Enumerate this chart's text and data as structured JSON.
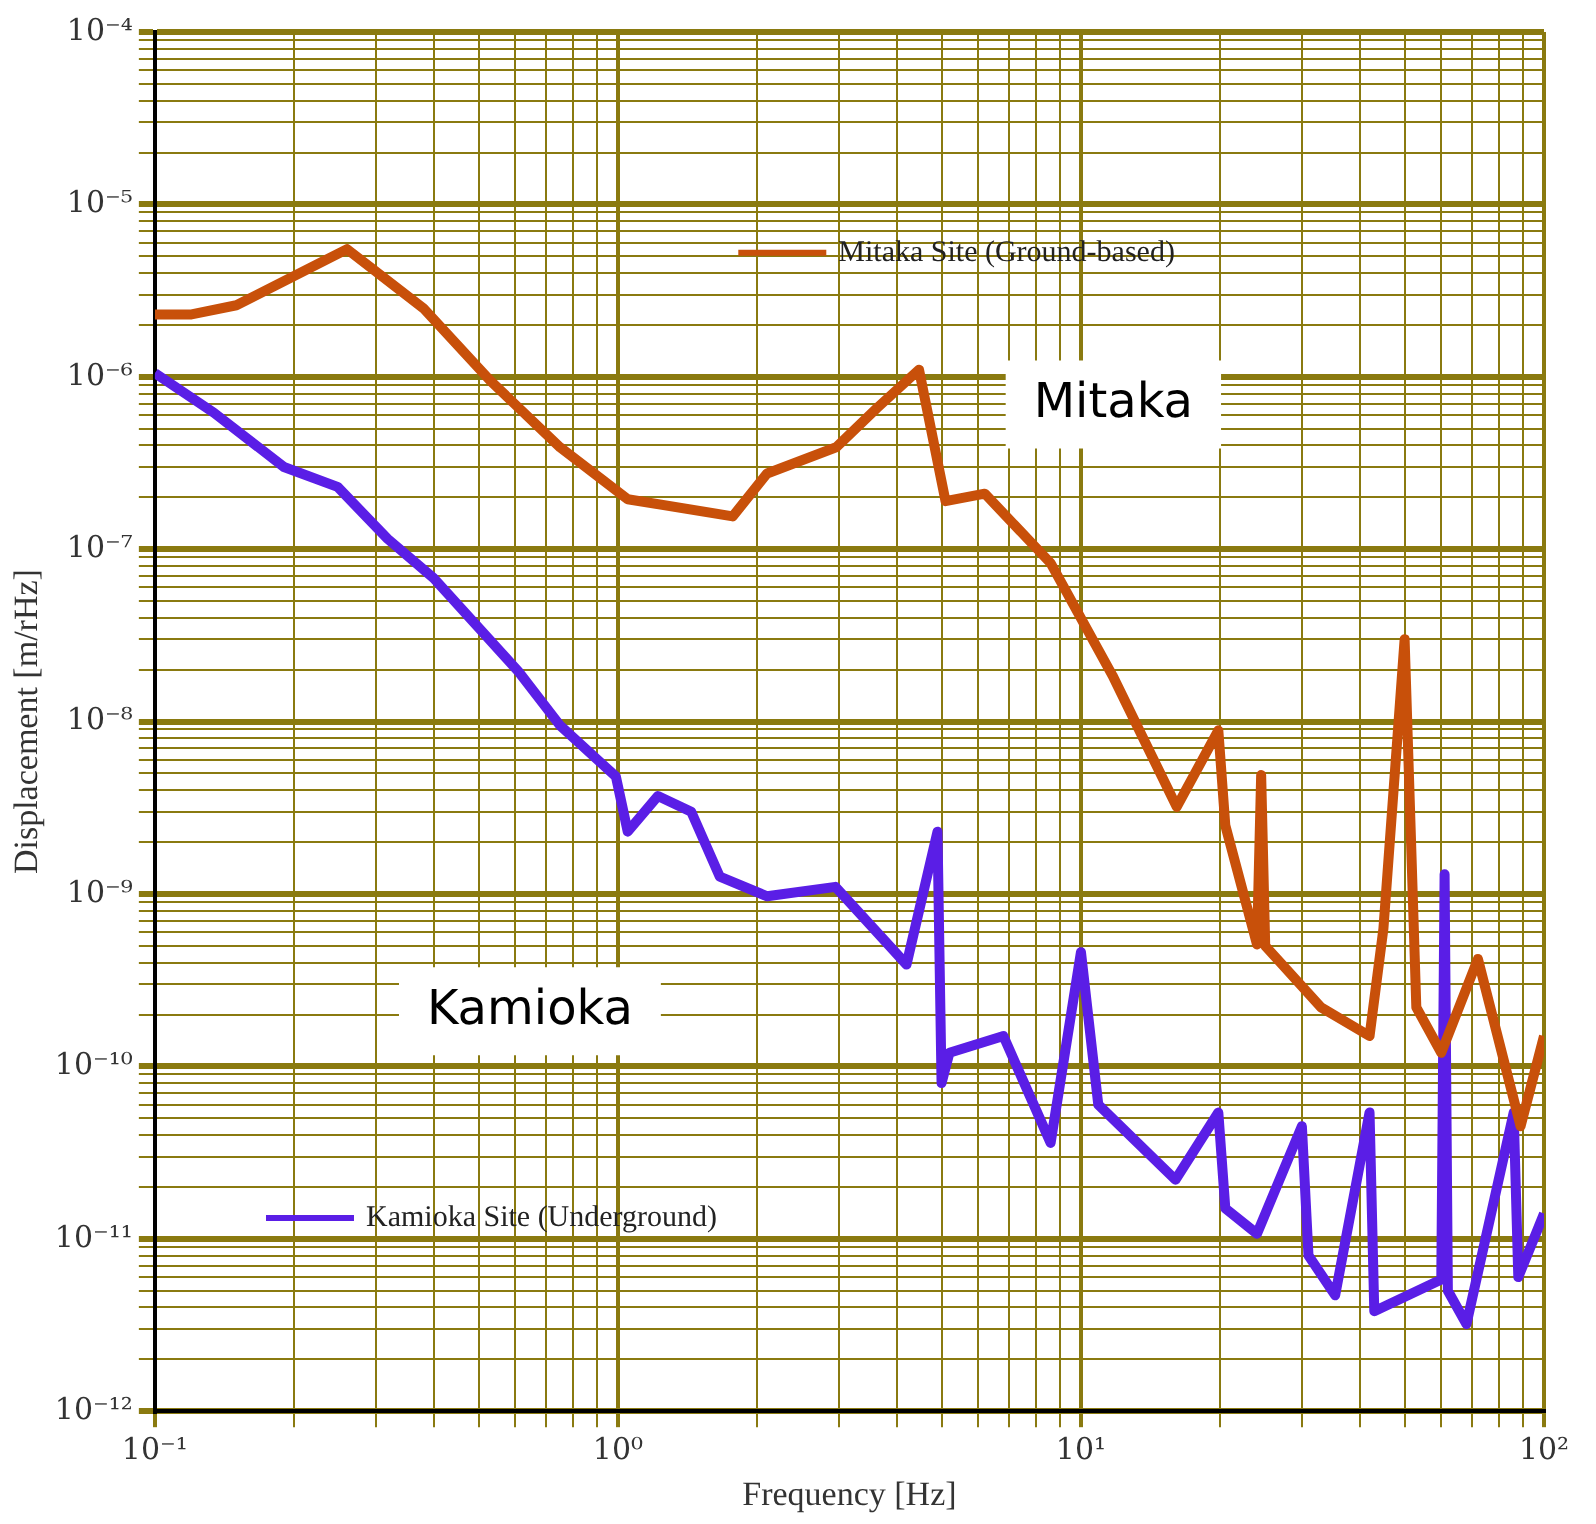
{
  "chart_data": {
    "type": "line",
    "xlabel": "Frequency [Hz]",
    "ylabel": "Displacement [m/rHz]",
    "log": "xy",
    "grid": true,
    "legend": "center",
    "xlim": [
      0.1,
      100
    ],
    "xticks": [
      {
        "value": 0.1,
        "label": "10⁻¹"
      },
      {
        "value": 0.2,
        "label": null
      },
      {
        "value": 0.3,
        "label": null
      },
      {
        "value": 0.4,
        "label": null
      },
      {
        "value": 0.5,
        "label": null
      },
      {
        "value": 0.6,
        "label": null
      },
      {
        "value": 0.7,
        "label": null
      },
      {
        "value": 0.8,
        "label": null
      },
      {
        "value": 0.9,
        "label": null
      },
      {
        "value": 1,
        "label": "10⁰"
      },
      {
        "value": 2,
        "label": null
      },
      {
        "value": 3,
        "label": null
      },
      {
        "value": 4,
        "label": null
      },
      {
        "value": 5,
        "label": null
      },
      {
        "value": 6,
        "label": null
      },
      {
        "value": 7,
        "label": null
      },
      {
        "value": 8,
        "label": null
      },
      {
        "value": 9,
        "label": null
      },
      {
        "value": 10,
        "label": "10¹"
      },
      {
        "value": 20,
        "label": null
      },
      {
        "value": 30,
        "label": null
      },
      {
        "value": 40,
        "label": null
      },
      {
        "value": 50,
        "label": null
      },
      {
        "value": 60,
        "label": null
      },
      {
        "value": 70,
        "label": null
      },
      {
        "value": 80,
        "label": null
      },
      {
        "value": 90,
        "label": null
      },
      {
        "value": 100,
        "label": "10²"
      }
    ],
    "ylim": [
      1e-12,
      0.0001
    ],
    "yticks": [
      {
        "value": 1e-12,
        "label": "10⁻¹²"
      },
      {
        "value": 2e-12,
        "label": null
      },
      {
        "value": 3e-12,
        "label": null
      },
      {
        "value": 4e-12,
        "label": null
      },
      {
        "value": 5e-12,
        "label": null
      },
      {
        "value": 6e-12,
        "label": null
      },
      {
        "value": 7e-12,
        "label": null
      },
      {
        "value": 8e-12,
        "label": null
      },
      {
        "value": 9e-12,
        "label": null
      },
      {
        "value": 1e-11,
        "label": "10⁻¹¹"
      },
      {
        "value": 2e-11,
        "label": null
      },
      {
        "value": 3e-11,
        "label": null
      },
      {
        "value": 4e-11,
        "label": null
      },
      {
        "value": 5e-11,
        "label": null
      },
      {
        "value": 6e-11,
        "label": null
      },
      {
        "value": 7e-11,
        "label": null
      },
      {
        "value": 8e-11,
        "label": null
      },
      {
        "value": 9e-11,
        "label": null
      },
      {
        "value": 1e-10,
        "label": "10⁻¹⁰"
      },
      {
        "value": 2e-10,
        "label": null
      },
      {
        "value": 3e-10,
        "label": null
      },
      {
        "value": 4e-10,
        "label": null
      },
      {
        "value": 5e-10,
        "label": null
      },
      {
        "value": 6e-10,
        "label": null
      },
      {
        "value": 7e-10,
        "label": null
      },
      {
        "value": 8e-10,
        "label": null
      },
      {
        "value": 9e-10,
        "label": null
      },
      {
        "value": 1e-09,
        "label": "10⁻⁹"
      },
      {
        "value": 2e-09,
        "label": null
      },
      {
        "value": 3e-09,
        "label": null
      },
      {
        "value": 4e-09,
        "label": null
      },
      {
        "value": 5e-09,
        "label": null
      },
      {
        "value": 6e-09,
        "label": null
      },
      {
        "value": 7e-09,
        "label": null
      },
      {
        "value": 8e-09,
        "label": null
      },
      {
        "value": 9e-09,
        "label": null
      },
      {
        "value": 1e-08,
        "label": "10⁻⁸"
      },
      {
        "value": 2e-08,
        "label": null
      },
      {
        "value": 3e-08,
        "label": null
      },
      {
        "value": 4e-08,
        "label": null
      },
      {
        "value": 5e-08,
        "label": null
      },
      {
        "value": 6e-08,
        "label": null
      },
      {
        "value": 7e-08,
        "label": null
      },
      {
        "value": 8e-08,
        "label": null
      },
      {
        "value": 9e-08,
        "label": null
      },
      {
        "value": 1e-07,
        "label": "10⁻⁷"
      },
      {
        "value": 2e-07,
        "label": null
      },
      {
        "value": 3e-07,
        "label": null
      },
      {
        "value": 4e-07,
        "label": null
      },
      {
        "value": 5e-07,
        "label": null
      },
      {
        "value": 6e-07,
        "label": null
      },
      {
        "value": 7e-07,
        "label": null
      },
      {
        "value": 8e-07,
        "label": null
      },
      {
        "value": 9e-07,
        "label": null
      },
      {
        "value": 1e-06,
        "label": "10⁻⁶"
      },
      {
        "value": 2e-06,
        "label": null
      },
      {
        "value": 3e-06,
        "label": null
      },
      {
        "value": 4e-06,
        "label": null
      },
      {
        "value": 5e-06,
        "label": null
      },
      {
        "value": 6e-06,
        "label": null
      },
      {
        "value": 7e-06,
        "label": null
      },
      {
        "value": 8e-06,
        "label": null
      },
      {
        "value": 9e-06,
        "label": null
      },
      {
        "value": 1e-05,
        "label": "10⁻⁵"
      },
      {
        "value": 2e-05,
        "label": null
      },
      {
        "value": 3e-05,
        "label": null
      },
      {
        "value": 4e-05,
        "label": null
      },
      {
        "value": 5e-05,
        "label": null
      },
      {
        "value": 6e-05,
        "label": null
      },
      {
        "value": 7e-05,
        "label": null
      },
      {
        "value": 8e-05,
        "label": null
      },
      {
        "value": 9e-05,
        "label": null
      },
      {
        "value": 0.0001,
        "label": "10⁻⁴"
      }
    ],
    "series": [
      {
        "name": "Mitaka Site (Ground-based)",
        "color": "#c8500a",
        "x": [
          0.1,
          0.12,
          0.15,
          0.26,
          0.38,
          0.53,
          0.75,
          1.05,
          1.77,
          2.1,
          2.96,
          3.63,
          4.47,
          5.1,
          6.2,
          8.6,
          11.7,
          16.1,
          19.8,
          20.5,
          24,
          24.5,
          25,
          33,
          42,
          45,
          50,
          53,
          60,
          72,
          89,
          100
        ],
        "values": [
          2.3e-06,
          2.3e-06,
          2.6e-06,
          5.5e-06,
          2.5e-06,
          9.5e-07,
          3.9e-07,
          1.95e-07,
          1.55e-07,
          2.75e-07,
          3.9e-07,
          6.6e-07,
          1.1e-06,
          1.9e-07,
          2.1e-07,
          8.3e-08,
          1.85e-08,
          3.2e-09,
          8.9e-09,
          2.5e-09,
          5.1e-10,
          4.9e-09,
          5e-10,
          2.2e-10,
          1.5e-10,
          6.3e-10,
          3e-08,
          2.2e-10,
          1.2e-10,
          4.2e-10,
          4.5e-11,
          1.5e-10
        ]
      },
      {
        "name": "Kamioka Site (Underground)",
        "color": "#5a1ee6",
        "x": [
          0.1,
          0.134,
          0.19,
          0.248,
          0.318,
          0.4,
          0.61,
          0.75,
          0.99,
          1.05,
          1.22,
          1.44,
          1.66,
          2.1,
          2.95,
          4.2,
          4.9,
          5.0,
          5.2,
          6.8,
          8.6,
          10,
          10.9,
          16,
          19.8,
          20.5,
          24,
          30,
          31,
          35.4,
          42,
          43,
          60,
          61,
          62,
          68,
          86,
          88,
          100
        ],
        "values": [
          1.05e-06,
          6.2e-07,
          3e-07,
          2.3e-07,
          1.15e-07,
          6.8e-08,
          1.95e-08,
          9.5e-09,
          4.8e-09,
          2.3e-09,
          3.7e-09,
          3e-09,
          1.26e-09,
          9.7e-10,
          1.1e-09,
          3.9e-10,
          2.3e-09,
          8e-11,
          1.2e-10,
          1.5e-10,
          3.6e-11,
          4.6e-10,
          6e-11,
          2.2e-11,
          5.4e-11,
          1.5e-11,
          1.07e-11,
          4.5e-11,
          8e-12,
          4.7e-12,
          5.4e-11,
          3.8e-12,
          5.8e-12,
          1.3e-09,
          5e-12,
          3.2e-12,
          5.4e-11,
          6e-12,
          1.4e-11
        ]
      }
    ],
    "annotations": [
      "Mitaka",
      "Kamioka"
    ]
  }
}
